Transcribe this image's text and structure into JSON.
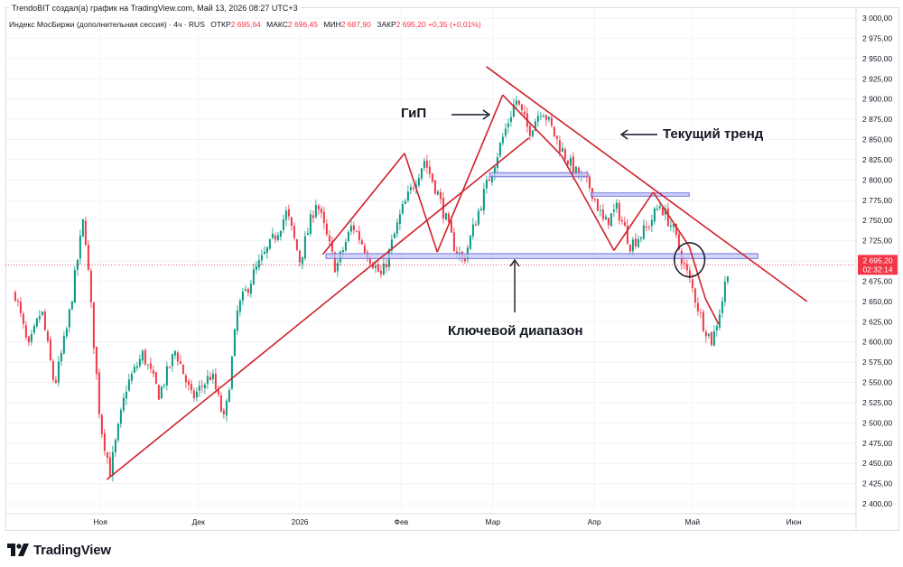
{
  "header": {
    "author_line": "TrendoBIT создал(а) график на TradingView.com, Май 13, 2026 08:27 UTC+3",
    "symbol": "Индекс МосБиржи (дополнительная сессия) · 4ч · RUS",
    "open_label": "ОТКР",
    "open_value": "2 695,64",
    "high_label": "МАКС",
    "high_value": "2 696,45",
    "low_label": "МИН",
    "low_value": "2 687,90",
    "close_label": "ЗАКР",
    "close_value": "2 695,20",
    "change": "+0,35 (+0,01%)"
  },
  "price_tag": {
    "price": "2 695,20",
    "timer": "02:32:14",
    "value": 2695.2,
    "color": "#f23645"
  },
  "footer": {
    "logo_text": "TradingView",
    "logo_icon": "tradingview-logo-icon"
  },
  "annotations": {
    "hs": "ГиП",
    "trend": "Текущий тренд",
    "range": "Ключевой диапазон"
  },
  "colors": {
    "up": "#089981",
    "down": "#f23645",
    "drawing": "#d0212b",
    "zone_fill": "#c5c8f5",
    "zone_stroke": "#6f72e0"
  },
  "chart_data": {
    "type": "candlestick",
    "title": "Индекс МосБиржи (дополнительная сессия)",
    "ylim": [
      2380,
      3000
    ],
    "y_ticks": [
      "3 000,00",
      "2 975,00",
      "2 950,00",
      "2 925,00",
      "2 900,00",
      "2 875,00",
      "2 850,00",
      "2 825,00",
      "2 800,00",
      "2 775,00",
      "2 750,00",
      "2 725,00",
      "2 700,00",
      "2 675,00",
      "2 650,00",
      "2 625,00",
      "2 600,00",
      "2 575,00",
      "2 550,00",
      "2 525,00",
      "2 500,00",
      "2 475,00",
      "2 450,00",
      "2 425,00",
      "2 400,00"
    ],
    "y_tick_values": [
      3000,
      2975,
      2950,
      2925,
      2900,
      2875,
      2850,
      2825,
      2800,
      2775,
      2750,
      2725,
      2700,
      2675,
      2650,
      2625,
      2600,
      2575,
      2550,
      2525,
      2500,
      2475,
      2450,
      2425,
      2400
    ],
    "x_ticks": [
      "Ноя",
      "Дек",
      "2026",
      "Фев",
      "Мар",
      "Апр",
      "Май",
      "Июн"
    ],
    "x_tick_dates": [
      "2025-11-01",
      "2025-12-01",
      "2026-01-01",
      "2026-02-01",
      "2026-03-01",
      "2026-04-01",
      "2026-05-01",
      "2026-06-01"
    ],
    "grid": true,
    "price_path": [
      [
        "2025-10-06",
        2660
      ],
      [
        "2025-10-10",
        2590
      ],
      [
        "2025-10-14",
        2640
      ],
      [
        "2025-10-18",
        2545
      ],
      [
        "2025-10-22",
        2620
      ],
      [
        "2025-10-27",
        2755
      ],
      [
        "2025-10-30",
        2600
      ],
      [
        "2025-11-01",
        2500
      ],
      [
        "2025-11-04",
        2440
      ],
      [
        "2025-11-09",
        2545
      ],
      [
        "2025-11-14",
        2585
      ],
      [
        "2025-11-19",
        2535
      ],
      [
        "2025-11-24",
        2590
      ],
      [
        "2025-11-29",
        2530
      ],
      [
        "2025-12-05",
        2560
      ],
      [
        "2025-12-09",
        2500
      ],
      [
        "2025-12-13",
        2640
      ],
      [
        "2025-12-18",
        2685
      ],
      [
        "2025-12-23",
        2720
      ],
      [
        "2025-12-28",
        2760
      ],
      [
        "2026-01-01",
        2700
      ],
      [
        "2026-01-06",
        2775
      ],
      [
        "2026-01-12",
        2690
      ],
      [
        "2026-01-17",
        2745
      ],
      [
        "2026-01-23",
        2700
      ],
      [
        "2026-01-26",
        2680
      ],
      [
        "2026-02-01",
        2760
      ],
      [
        "2026-02-08",
        2825
      ],
      [
        "2026-02-12",
        2785
      ],
      [
        "2026-02-17",
        2720
      ],
      [
        "2026-02-20",
        2700
      ],
      [
        "2026-02-26",
        2780
      ],
      [
        "2026-03-03",
        2840
      ],
      [
        "2026-03-08",
        2900
      ],
      [
        "2026-03-12",
        2860
      ],
      [
        "2026-03-16",
        2890
      ],
      [
        "2026-03-21",
        2845
      ],
      [
        "2026-03-26",
        2810
      ],
      [
        "2026-03-31",
        2790
      ],
      [
        "2026-04-04",
        2745
      ],
      [
        "2026-04-08",
        2765
      ],
      [
        "2026-04-12",
        2720
      ],
      [
        "2026-04-17",
        2740
      ],
      [
        "2026-04-21",
        2770
      ],
      [
        "2026-04-25",
        2740
      ],
      [
        "2026-04-28",
        2700
      ],
      [
        "2026-05-01",
        2665
      ],
      [
        "2026-05-04",
        2625
      ],
      [
        "2026-05-07",
        2600
      ],
      [
        "2026-05-10",
        2650
      ],
      [
        "2026-05-12",
        2695
      ]
    ],
    "drawings": {
      "lines": [
        {
          "from": [
            "2025-11-03",
            2430
          ],
          "to": [
            "2026-03-12",
            2852
          ]
        },
        {
          "from": [
            "2026-02-27",
            2940
          ],
          "to": [
            "2026-06-05",
            2650
          ]
        },
        {
          "from": [
            "2026-01-08",
            2708
          ],
          "to": [
            "2026-02-02",
            2833
          ]
        },
        {
          "from": [
            "2026-02-02",
            2833
          ],
          "to": [
            "2026-02-12",
            2711
          ]
        },
        {
          "from": [
            "2026-02-12",
            2711
          ],
          "to": [
            "2026-03-04",
            2905
          ]
        },
        {
          "from": [
            "2026-03-04",
            2905
          ],
          "to": [
            "2026-03-22",
            2830
          ]
        },
        {
          "from": [
            "2026-03-22",
            2830
          ],
          "to": [
            "2026-04-07",
            2713
          ]
        },
        {
          "from": [
            "2026-04-07",
            2713
          ],
          "to": [
            "2026-04-19",
            2785
          ]
        },
        {
          "from": [
            "2026-04-19",
            2785
          ],
          "to": [
            "2026-04-30",
            2718
          ]
        },
        {
          "from": [
            "2026-04-30",
            2718
          ],
          "to": [
            "2026-05-05",
            2653
          ]
        },
        {
          "from": [
            "2026-05-05",
            2653
          ],
          "to": [
            "2026-05-09",
            2622
          ]
        }
      ],
      "zones": [
        {
          "from": "2026-01-09",
          "to": "2026-05-21",
          "low": 2703,
          "high": 2709
        },
        {
          "from": "2026-02-28",
          "to": "2026-03-30",
          "low": 2804,
          "high": 2809
        },
        {
          "from": "2026-03-31",
          "to": "2026-04-30",
          "low": 2780,
          "high": 2784
        }
      ],
      "circle": {
        "at": [
          "2026-04-29",
          2697
        ],
        "r_data_days": 2.3
      }
    }
  }
}
